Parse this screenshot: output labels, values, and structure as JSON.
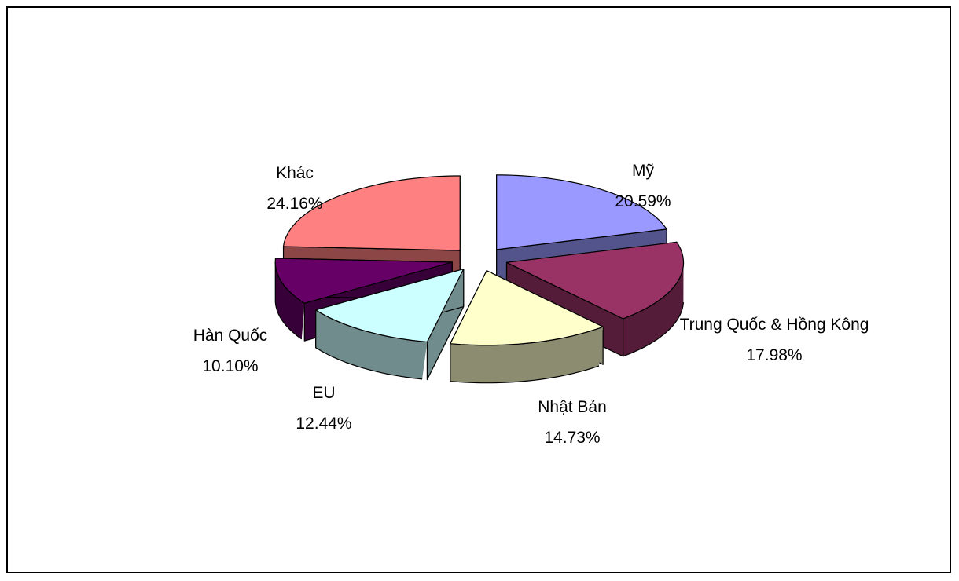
{
  "chart_data": {
    "type": "pie3d",
    "categories": [
      "Mỹ",
      "Trung Quốc & Hồng Kông",
      "Nhật Bản",
      "EU",
      "Hàn Quốc",
      "Khác"
    ],
    "values": [
      20.59,
      17.98,
      14.73,
      12.44,
      10.1,
      24.16
    ],
    "value_labels": [
      "20.59%",
      "17.98%",
      "14.73%",
      "12.44%",
      "10.10%",
      "24.16%"
    ],
    "colors": [
      "#9999ff",
      "#993366",
      "#ffffcc",
      "#ccffff",
      "#660066",
      "#ff8080"
    ]
  }
}
